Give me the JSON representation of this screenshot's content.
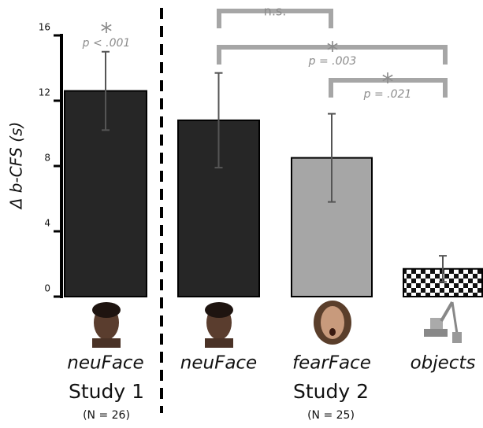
{
  "chart_data": {
    "type": "bar",
    "y_label": "Δ b-CFS (s)",
    "categories": [
      "neuFace",
      "neuFace",
      "fearFace",
      "objects"
    ],
    "values": [
      12.6,
      10.8,
      8.5,
      1.7
    ],
    "errors": [
      2.4,
      2.9,
      2.7,
      0.8
    ],
    "colors": [
      "#262626",
      "#262626",
      "#a6a6a6",
      "checkerboard"
    ],
    "ylim": [
      0,
      16
    ],
    "yticks": [
      0,
      4,
      8,
      12,
      16
    ],
    "groups": [
      {
        "label": "Study 1",
        "n": "(N = 26)"
      },
      {
        "label": "Study 2",
        "n": "(N = 25)"
      }
    ],
    "annotations": [
      {
        "star": "*",
        "text": "p < .001"
      },
      {
        "text": "n.s."
      },
      {
        "star": "*",
        "text": "p = .003"
      },
      {
        "star": "*",
        "text": "p = .021"
      }
    ]
  }
}
